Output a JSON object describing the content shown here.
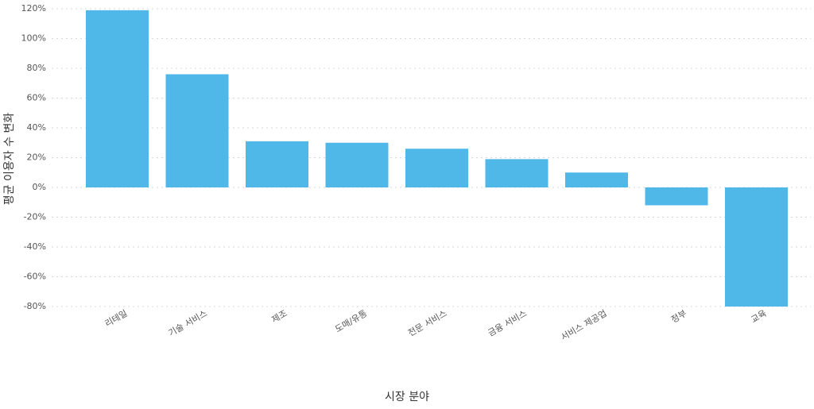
{
  "chart_data": {
    "type": "bar",
    "x_label": "시장 분야",
    "y_label": "평균 이용자 수 변화",
    "categories": [
      "리테일",
      "기술 서비스",
      "제조",
      "도매/유통",
      "전문 서비스",
      "금융 서비스",
      "서비스 제공업",
      "정부",
      "교육"
    ],
    "values": [
      119,
      76,
      31,
      30,
      26,
      19,
      10,
      -12,
      -80
    ],
    "color": "#4fb8e8",
    "ylim": [
      -80,
      120
    ],
    "yticks": [
      {
        "value": -80,
        "label": "-80%"
      },
      {
        "value": -60,
        "label": "-60%"
      },
      {
        "value": -40,
        "label": "-40%"
      },
      {
        "value": -20,
        "label": "-20%"
      },
      {
        "value": 0,
        "label": "0%"
      },
      {
        "value": 20,
        "label": "20%"
      },
      {
        "value": 40,
        "label": "40%"
      },
      {
        "value": 60,
        "label": "60%"
      },
      {
        "value": 80,
        "label": "80%"
      },
      {
        "value": 100,
        "label": "100%"
      },
      {
        "value": 120,
        "label": "120%"
      }
    ],
    "grid": true
  }
}
